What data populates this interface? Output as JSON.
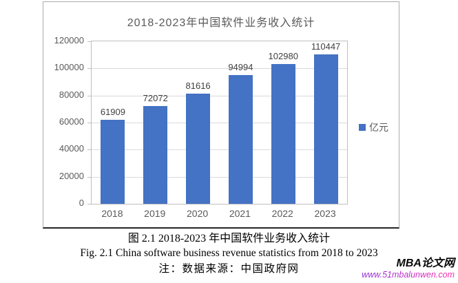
{
  "chart_data": {
    "type": "bar",
    "title": "2018-2023年中国软件业务收入统计",
    "categories": [
      "2018",
      "2019",
      "2020",
      "2021",
      "2022",
      "2023"
    ],
    "values": [
      61909,
      72072,
      81616,
      94994,
      102980,
      110447
    ],
    "xlabel": "",
    "ylabel": "",
    "ylim": [
      0,
      120000
    ],
    "ytick_step": 20000,
    "grid": true,
    "legend": [
      "亿元"
    ],
    "legend_position": "right",
    "data_labels": true
  },
  "caption": {
    "line1_zh": "图 2.1 2018-2023 年中国软件业务收入统计",
    "line2_en": "Fig. 2.1 China software business revenue statistics from 2018 to 2023",
    "line3_note": "注：数据来源：中国政府网"
  },
  "watermark": {
    "site_name": "MBA论文网",
    "site_url": "www.51mbalunwen.com"
  },
  "colors": {
    "bar": "#4472C4",
    "axis_text": "#595959",
    "data_label": "#3f3f3f",
    "gridline": "#d9d9d9",
    "plot_border": "#bfbfbf",
    "frame_border": "#ababab",
    "frame_bottom": "#262626",
    "url_gradient_start": "#8f2fd8",
    "url_gradient_end": "#ff2da8"
  }
}
